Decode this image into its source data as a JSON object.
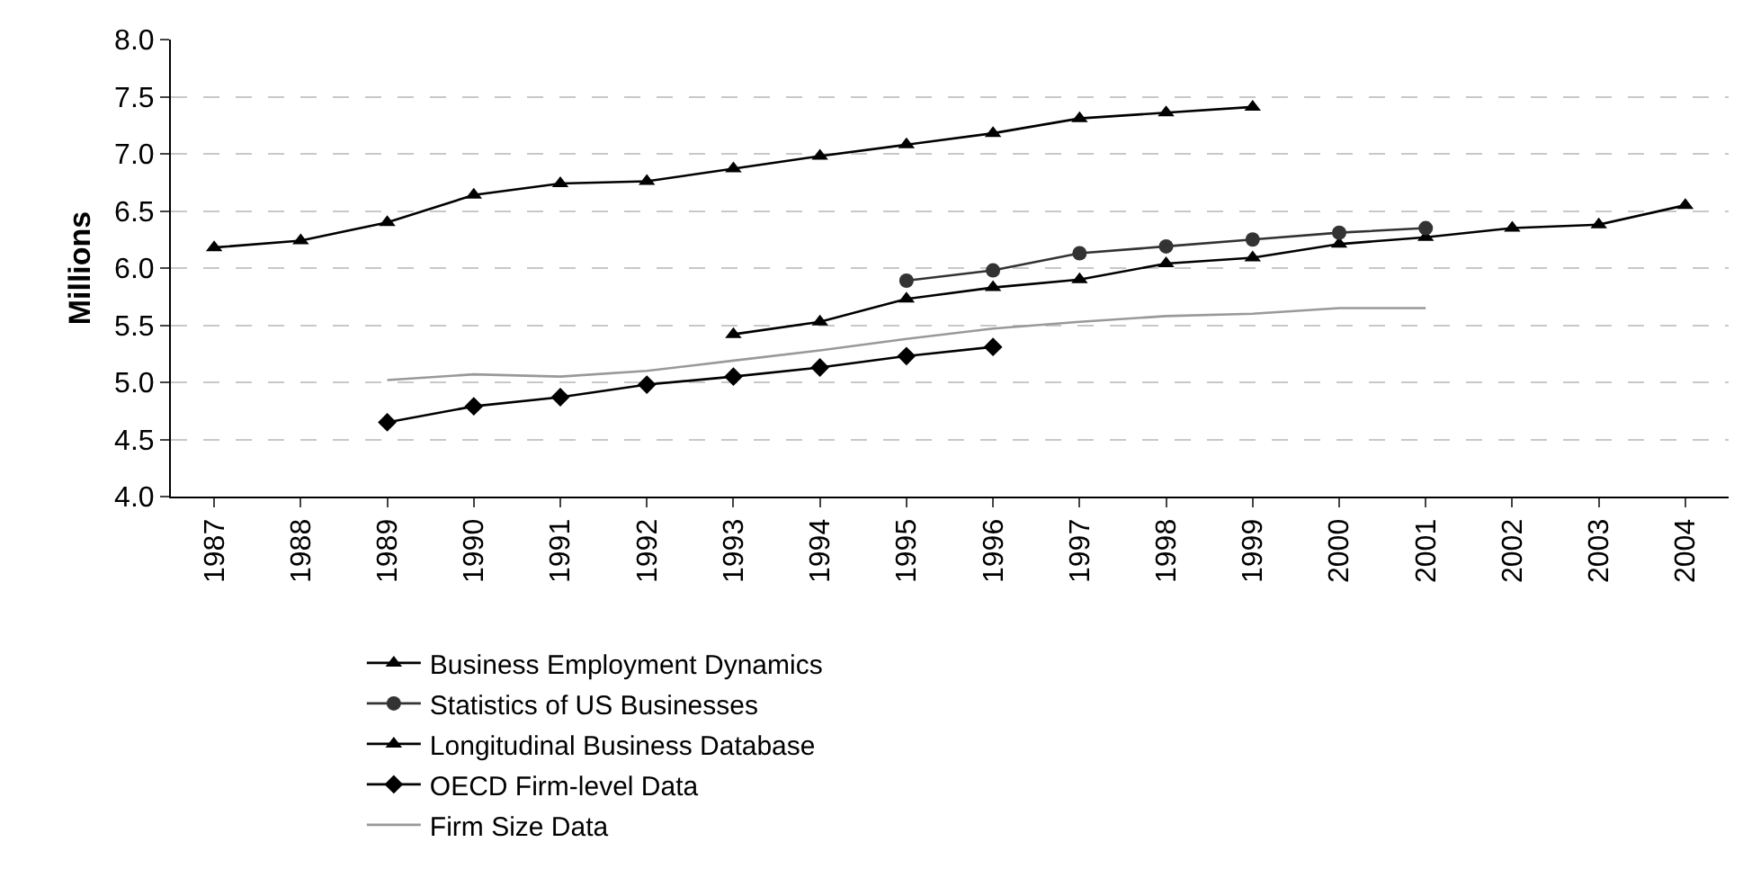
{
  "chart_data": {
    "type": "line",
    "ylabel": "Millions",
    "categories": [
      "1987",
      "1988",
      "1989",
      "1990",
      "1991",
      "1992",
      "1993",
      "1994",
      "1995",
      "1996",
      "1997",
      "1998",
      "1999",
      "2000",
      "2001",
      "2002",
      "2003",
      "2004"
    ],
    "series": [
      {
        "name": "Business Employment Dynamics",
        "color": "#000000",
        "marker": "triangle",
        "values": [
          null,
          null,
          null,
          null,
          null,
          null,
          5.42,
          5.53,
          5.73,
          5.83,
          5.9,
          6.04,
          6.09,
          6.21,
          6.27,
          6.35,
          6.38,
          6.55
        ]
      },
      {
        "name": "Statistics of US Businesses",
        "color": "#333333",
        "marker": "circle",
        "values": [
          null,
          null,
          null,
          null,
          null,
          null,
          null,
          null,
          5.89,
          5.98,
          6.13,
          6.19,
          6.25,
          6.31,
          6.35,
          null,
          null,
          null
        ]
      },
      {
        "name": "Longitudinal Business Database",
        "color": "#000000",
        "marker": "triangle",
        "values": [
          6.18,
          6.24,
          6.4,
          6.64,
          6.74,
          6.76,
          6.87,
          6.98,
          7.08,
          7.18,
          7.31,
          7.36,
          7.41,
          null,
          null,
          null,
          null,
          null
        ]
      },
      {
        "name": "OECD Firm-level Data",
        "color": "#000000",
        "marker": "diamond",
        "values": [
          null,
          null,
          4.65,
          4.79,
          4.87,
          4.98,
          5.05,
          5.13,
          5.23,
          5.31,
          null,
          null,
          null,
          null,
          null,
          null,
          null,
          null
        ]
      },
      {
        "name": "Firm Size Data",
        "color": "#999999",
        "marker": "none",
        "values": [
          null,
          null,
          5.02,
          5.07,
          5.05,
          5.1,
          5.19,
          5.28,
          5.38,
          5.47,
          5.53,
          5.58,
          5.6,
          5.65,
          5.65,
          null,
          null,
          null
        ]
      }
    ],
    "ylim": [
      4.0,
      8.0
    ],
    "yticks": [
      {
        "value": 4.0,
        "label": "4.0"
      },
      {
        "value": 4.5,
        "label": "4.5"
      },
      {
        "value": 5.0,
        "label": "5.0"
      },
      {
        "value": 5.5,
        "label": "5.5"
      },
      {
        "value": 6.0,
        "label": "6.0"
      },
      {
        "value": 6.5,
        "label": "6.5"
      },
      {
        "value": 7.0,
        "label": "7.0"
      },
      {
        "value": 7.5,
        "label": "7.5"
      },
      {
        "value": 8.0,
        "label": "8.0"
      }
    ],
    "grid": "y",
    "legend": "bottom",
    "line_style": "solid"
  }
}
